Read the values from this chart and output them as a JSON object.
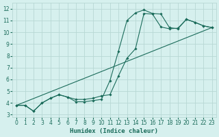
{
  "title": "",
  "xlabel": "Humidex (Indice chaleur)",
  "ylabel": "",
  "bg_color": "#d6f0ee",
  "grid_color": "#b8d8d4",
  "line_color": "#1a6b5a",
  "ylim": [
    2.8,
    12.5
  ],
  "xlim": [
    -0.5,
    23.5
  ],
  "yticks": [
    3,
    4,
    5,
    6,
    7,
    8,
    9,
    10,
    11,
    12
  ],
  "xticks": [
    0,
    1,
    2,
    3,
    4,
    5,
    6,
    7,
    8,
    9,
    10,
    11,
    12,
    13,
    14,
    15,
    16,
    17,
    18,
    19,
    20,
    21,
    22,
    23
  ],
  "series1_x": [
    0,
    1,
    2,
    3,
    4,
    5,
    6,
    7,
    8,
    9,
    10,
    11,
    12,
    13,
    14,
    15,
    16,
    17,
    18,
    19,
    20,
    21,
    22,
    23
  ],
  "series1_y": [
    3.8,
    3.8,
    3.3,
    4.0,
    4.4,
    4.7,
    4.5,
    4.1,
    4.1,
    4.2,
    4.3,
    5.9,
    8.4,
    11.0,
    11.65,
    11.9,
    11.6,
    11.55,
    10.4,
    10.3,
    11.1,
    10.85,
    10.55,
    10.4
  ],
  "series2_x": [
    0,
    1,
    2,
    3,
    4,
    5,
    6,
    7,
    8,
    9,
    10,
    11,
    12,
    13,
    14,
    15,
    16,
    17,
    18,
    19,
    20,
    21,
    22,
    23
  ],
  "series2_y": [
    3.8,
    3.8,
    3.3,
    4.0,
    4.4,
    4.7,
    4.5,
    4.3,
    4.3,
    4.4,
    4.6,
    4.7,
    6.3,
    7.8,
    8.6,
    11.6,
    11.55,
    10.45,
    10.3,
    10.35,
    11.1,
    10.85,
    10.55,
    10.4
  ],
  "series3_x": [
    0,
    23
  ],
  "series3_y": [
    3.8,
    10.4
  ]
}
